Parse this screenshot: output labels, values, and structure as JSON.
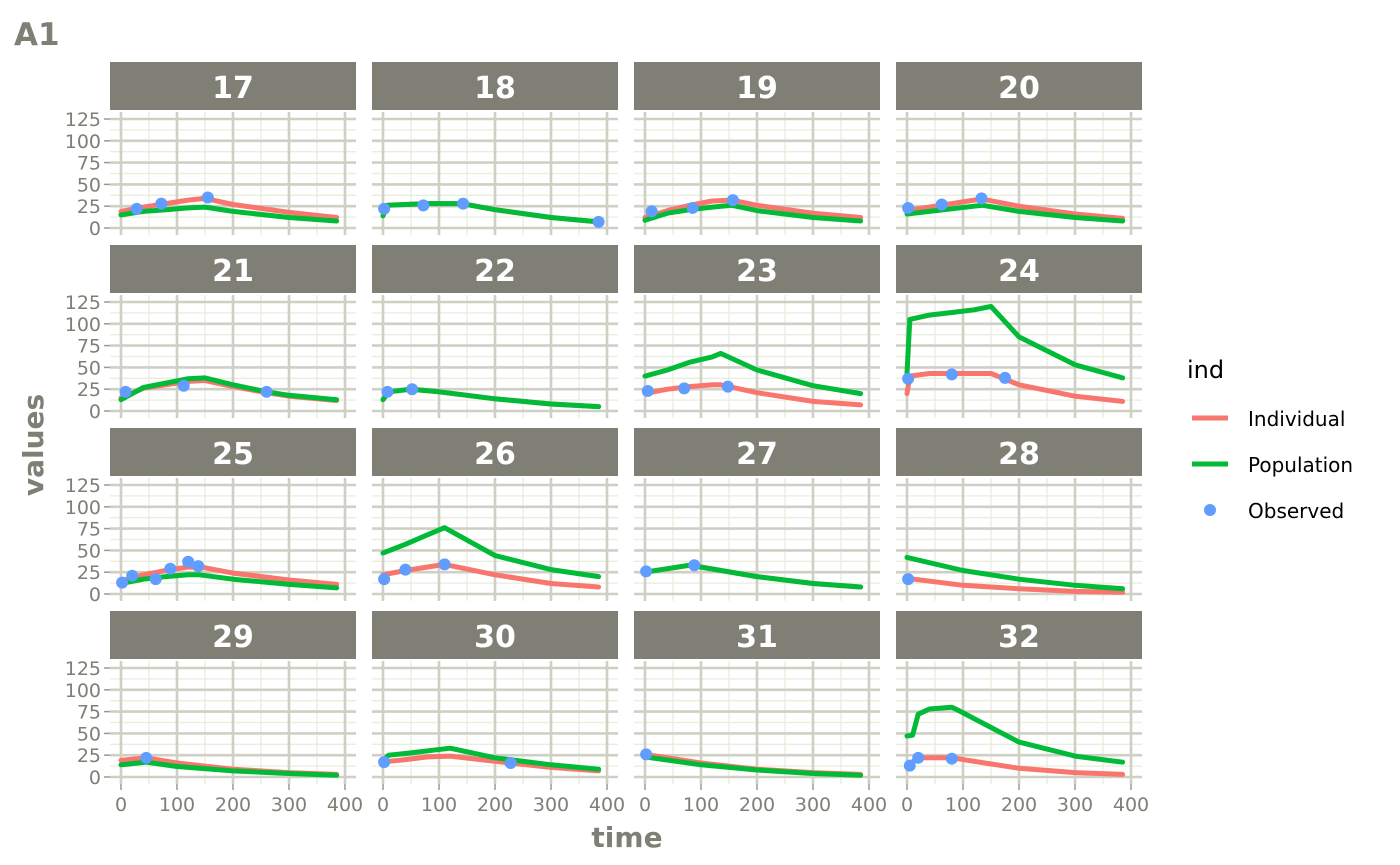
{
  "figure": {
    "title": "A1",
    "xlabel": "time",
    "ylabel": "values",
    "legend_title": "ind"
  },
  "colors": {
    "individual": "#f8766d",
    "population": "#00ba38",
    "observed": "#619cff",
    "strip": "#7f7f76",
    "grid_major": "#cfcfc4",
    "grid_minor": "#e8eddc"
  },
  "chart_data": {
    "type": "line",
    "facet_by": "id",
    "x_axis": {
      "label": "time",
      "lim": [
        0,
        400
      ],
      "ticks": [
        0,
        100,
        200,
        300,
        400
      ],
      "tick_labels": [
        "0",
        "100",
        "200",
        "300",
        "400"
      ]
    },
    "y_axis": {
      "label": "values",
      "lim": [
        0,
        125
      ],
      "ticks": [
        0,
        25,
        50,
        75,
        100,
        125
      ],
      "tick_labels": [
        "0",
        "25",
        "50",
        "75",
        "100",
        "125"
      ]
    },
    "grid": true,
    "legend": {
      "title": "ind",
      "placement": "right",
      "entries": [
        {
          "name": "Individual",
          "kind": "line",
          "color": "#f8766d"
        },
        {
          "name": "Population",
          "kind": "line",
          "color": "#00ba38"
        },
        {
          "name": "Observed",
          "kind": "point",
          "color": "#619cff"
        }
      ]
    },
    "panels": [
      {
        "id": "17",
        "label": "17",
        "individual": [
          [
            0,
            19
          ],
          [
            40,
            24
          ],
          [
            80,
            28
          ],
          [
            120,
            32
          ],
          [
            150,
            34
          ],
          [
            200,
            27
          ],
          [
            300,
            18
          ],
          [
            385,
            12
          ]
        ],
        "population": [
          [
            0,
            15
          ],
          [
            40,
            19
          ],
          [
            80,
            21
          ],
          [
            120,
            23
          ],
          [
            150,
            24
          ],
          [
            200,
            19
          ],
          [
            300,
            12
          ],
          [
            385,
            8
          ]
        ],
        "observed": [
          [
            28,
            22
          ],
          [
            72,
            28
          ],
          [
            155,
            35
          ]
        ]
      },
      {
        "id": "18",
        "label": "18",
        "individual": [
          [
            0,
            14
          ],
          [
            8,
            26
          ],
          [
            40,
            27
          ],
          [
            80,
            28
          ],
          [
            140,
            28
          ],
          [
            200,
            21
          ],
          [
            300,
            12
          ],
          [
            385,
            7
          ]
        ],
        "population": [
          [
            0,
            14
          ],
          [
            8,
            26
          ],
          [
            40,
            27
          ],
          [
            80,
            28
          ],
          [
            140,
            28
          ],
          [
            200,
            21
          ],
          [
            300,
            12
          ],
          [
            385,
            7
          ]
        ],
        "observed": [
          [
            2,
            22
          ],
          [
            72,
            26
          ],
          [
            143,
            28
          ],
          [
            385,
            7
          ]
        ]
      },
      {
        "id": "19",
        "label": "19",
        "individual": [
          [
            0,
            12
          ],
          [
            40,
            20
          ],
          [
            80,
            26
          ],
          [
            120,
            31
          ],
          [
            155,
            32
          ],
          [
            200,
            26
          ],
          [
            300,
            17
          ],
          [
            385,
            12
          ]
        ],
        "population": [
          [
            0,
            9
          ],
          [
            40,
            17
          ],
          [
            80,
            21
          ],
          [
            120,
            24
          ],
          [
            155,
            26
          ],
          [
            200,
            20
          ],
          [
            300,
            12
          ],
          [
            385,
            8
          ]
        ],
        "observed": [
          [
            12,
            19
          ],
          [
            85,
            23
          ],
          [
            157,
            32
          ]
        ]
      },
      {
        "id": "20",
        "label": "20",
        "individual": [
          [
            0,
            20
          ],
          [
            40,
            24
          ],
          [
            80,
            28
          ],
          [
            120,
            32
          ],
          [
            135,
            33
          ],
          [
            200,
            25
          ],
          [
            300,
            16
          ],
          [
            385,
            11
          ]
        ],
        "population": [
          [
            0,
            16
          ],
          [
            40,
            19
          ],
          [
            80,
            22
          ],
          [
            120,
            25
          ],
          [
            135,
            26
          ],
          [
            200,
            19
          ],
          [
            300,
            12
          ],
          [
            385,
            8
          ]
        ],
        "observed": [
          [
            2,
            23
          ],
          [
            62,
            27
          ],
          [
            133,
            34
          ]
        ]
      },
      {
        "id": "21",
        "label": "21",
        "individual": [
          [
            0,
            15
          ],
          [
            40,
            26
          ],
          [
            80,
            30
          ],
          [
            120,
            34
          ],
          [
            150,
            35
          ],
          [
            200,
            28
          ],
          [
            260,
            21
          ],
          [
            300,
            17
          ],
          [
            385,
            12
          ]
        ],
        "population": [
          [
            0,
            13
          ],
          [
            40,
            27
          ],
          [
            80,
            32
          ],
          [
            120,
            37
          ],
          [
            150,
            38
          ],
          [
            200,
            30
          ],
          [
            260,
            22
          ],
          [
            300,
            18
          ],
          [
            385,
            13
          ]
        ],
        "observed": [
          [
            8,
            22
          ],
          [
            112,
            29
          ],
          [
            260,
            22
          ]
        ]
      },
      {
        "id": "22",
        "label": "22",
        "individual": [
          [
            0,
            13
          ],
          [
            10,
            22
          ],
          [
            50,
            25
          ],
          [
            100,
            22
          ],
          [
            200,
            14
          ],
          [
            300,
            8
          ],
          [
            385,
            5
          ]
        ],
        "population": [
          [
            0,
            13
          ],
          [
            10,
            22
          ],
          [
            50,
            25
          ],
          [
            100,
            22
          ],
          [
            200,
            14
          ],
          [
            300,
            8
          ],
          [
            385,
            5
          ]
        ],
        "observed": [
          [
            8,
            22
          ],
          [
            52,
            25
          ]
        ]
      },
      {
        "id": "23",
        "label": "23",
        "individual": [
          [
            0,
            20
          ],
          [
            40,
            25
          ],
          [
            80,
            28
          ],
          [
            120,
            30
          ],
          [
            135,
            30
          ],
          [
            200,
            21
          ],
          [
            300,
            11
          ],
          [
            385,
            7
          ]
        ],
        "population": [
          [
            0,
            40
          ],
          [
            40,
            47
          ],
          [
            80,
            56
          ],
          [
            120,
            62
          ],
          [
            135,
            66
          ],
          [
            200,
            47
          ],
          [
            300,
            29
          ],
          [
            385,
            20
          ]
        ],
        "observed": [
          [
            5,
            23
          ],
          [
            70,
            26
          ],
          [
            148,
            28
          ]
        ]
      },
      {
        "id": "24",
        "label": "24",
        "individual": [
          [
            0,
            20
          ],
          [
            5,
            40
          ],
          [
            40,
            43
          ],
          [
            80,
            43
          ],
          [
            120,
            43
          ],
          [
            150,
            43
          ],
          [
            200,
            30
          ],
          [
            300,
            17
          ],
          [
            385,
            11
          ]
        ],
        "population": [
          [
            0,
            43
          ],
          [
            5,
            105
          ],
          [
            40,
            110
          ],
          [
            80,
            113
          ],
          [
            120,
            116
          ],
          [
            150,
            120
          ],
          [
            200,
            85
          ],
          [
            300,
            53
          ],
          [
            385,
            38
          ]
        ],
        "observed": [
          [
            2,
            37
          ],
          [
            80,
            42
          ],
          [
            175,
            38
          ]
        ]
      },
      {
        "id": "25",
        "label": "25",
        "individual": [
          [
            0,
            15
          ],
          [
            40,
            22
          ],
          [
            80,
            27
          ],
          [
            120,
            31
          ],
          [
            150,
            30
          ],
          [
            200,
            24
          ],
          [
            300,
            16
          ],
          [
            385,
            11
          ]
        ],
        "population": [
          [
            0,
            12
          ],
          [
            40,
            17
          ],
          [
            80,
            20
          ],
          [
            120,
            22
          ],
          [
            140,
            22
          ],
          [
            200,
            17
          ],
          [
            300,
            11
          ],
          [
            385,
            7
          ]
        ],
        "observed": [
          [
            2,
            13
          ],
          [
            20,
            21
          ],
          [
            62,
            17
          ],
          [
            88,
            29
          ],
          [
            120,
            37
          ],
          [
            138,
            32
          ]
        ]
      },
      {
        "id": "26",
        "label": "26",
        "individual": [
          [
            0,
            22
          ],
          [
            40,
            27
          ],
          [
            80,
            31
          ],
          [
            110,
            34
          ],
          [
            200,
            22
          ],
          [
            300,
            12
          ],
          [
            385,
            8
          ]
        ],
        "population": [
          [
            0,
            47
          ],
          [
            40,
            57
          ],
          [
            80,
            68
          ],
          [
            110,
            76
          ],
          [
            200,
            44
          ],
          [
            300,
            28
          ],
          [
            385,
            20
          ]
        ],
        "observed": [
          [
            2,
            17
          ],
          [
            40,
            28
          ],
          [
            110,
            34
          ]
        ]
      },
      {
        "id": "27",
        "label": "27",
        "individual": [
          [
            0,
            25
          ],
          [
            40,
            29
          ],
          [
            80,
            33
          ],
          [
            90,
            32
          ],
          [
            200,
            20
          ],
          [
            300,
            12
          ],
          [
            385,
            8
          ]
        ],
        "population": [
          [
            0,
            25
          ],
          [
            40,
            29
          ],
          [
            80,
            33
          ],
          [
            90,
            32
          ],
          [
            200,
            20
          ],
          [
            300,
            12
          ],
          [
            385,
            8
          ]
        ],
        "observed": [
          [
            2,
            26
          ],
          [
            88,
            33
          ]
        ]
      },
      {
        "id": "28",
        "label": "28",
        "individual": [
          [
            0,
            18
          ],
          [
            100,
            10
          ],
          [
            200,
            6
          ],
          [
            300,
            3
          ],
          [
            385,
            2
          ]
        ],
        "population": [
          [
            0,
            42
          ],
          [
            100,
            27
          ],
          [
            200,
            17
          ],
          [
            300,
            10
          ],
          [
            385,
            6
          ]
        ],
        "observed": [
          [
            2,
            17
          ]
        ]
      },
      {
        "id": "29",
        "label": "29",
        "individual": [
          [
            0,
            19
          ],
          [
            45,
            22
          ],
          [
            100,
            16
          ],
          [
            200,
            9
          ],
          [
            300,
            5
          ],
          [
            385,
            3
          ]
        ],
        "population": [
          [
            0,
            14
          ],
          [
            45,
            17
          ],
          [
            100,
            12
          ],
          [
            200,
            7
          ],
          [
            300,
            4
          ],
          [
            385,
            2
          ]
        ],
        "observed": [
          [
            45,
            22
          ]
        ]
      },
      {
        "id": "30",
        "label": "30",
        "individual": [
          [
            0,
            16
          ],
          [
            10,
            18
          ],
          [
            40,
            20
          ],
          [
            80,
            23
          ],
          [
            120,
            24
          ],
          [
            200,
            18
          ],
          [
            300,
            11
          ],
          [
            385,
            7
          ]
        ],
        "population": [
          [
            0,
            19
          ],
          [
            10,
            25
          ],
          [
            40,
            27
          ],
          [
            80,
            30
          ],
          [
            120,
            33
          ],
          [
            200,
            22
          ],
          [
            300,
            14
          ],
          [
            385,
            9
          ]
        ],
        "observed": [
          [
            2,
            17
          ],
          [
            228,
            16
          ]
        ]
      },
      {
        "id": "31",
        "label": "31",
        "individual": [
          [
            0,
            26
          ],
          [
            100,
            16
          ],
          [
            200,
            9
          ],
          [
            300,
            5
          ],
          [
            385,
            3
          ]
        ],
        "population": [
          [
            0,
            23
          ],
          [
            100,
            14
          ],
          [
            200,
            8
          ],
          [
            300,
            4
          ],
          [
            385,
            2
          ]
        ],
        "observed": [
          [
            2,
            26
          ]
        ]
      },
      {
        "id": "32",
        "label": "32",
        "individual": [
          [
            0,
            13
          ],
          [
            20,
            22
          ],
          [
            80,
            22
          ],
          [
            90,
            21
          ],
          [
            200,
            10
          ],
          [
            300,
            5
          ],
          [
            385,
            3
          ]
        ],
        "population": [
          [
            0,
            47
          ],
          [
            10,
            48
          ],
          [
            20,
            72
          ],
          [
            40,
            78
          ],
          [
            80,
            80
          ],
          [
            90,
            77
          ],
          [
            200,
            40
          ],
          [
            300,
            24
          ],
          [
            385,
            17
          ]
        ],
        "observed": [
          [
            5,
            13
          ],
          [
            20,
            22
          ],
          [
            80,
            21
          ]
        ]
      }
    ]
  }
}
